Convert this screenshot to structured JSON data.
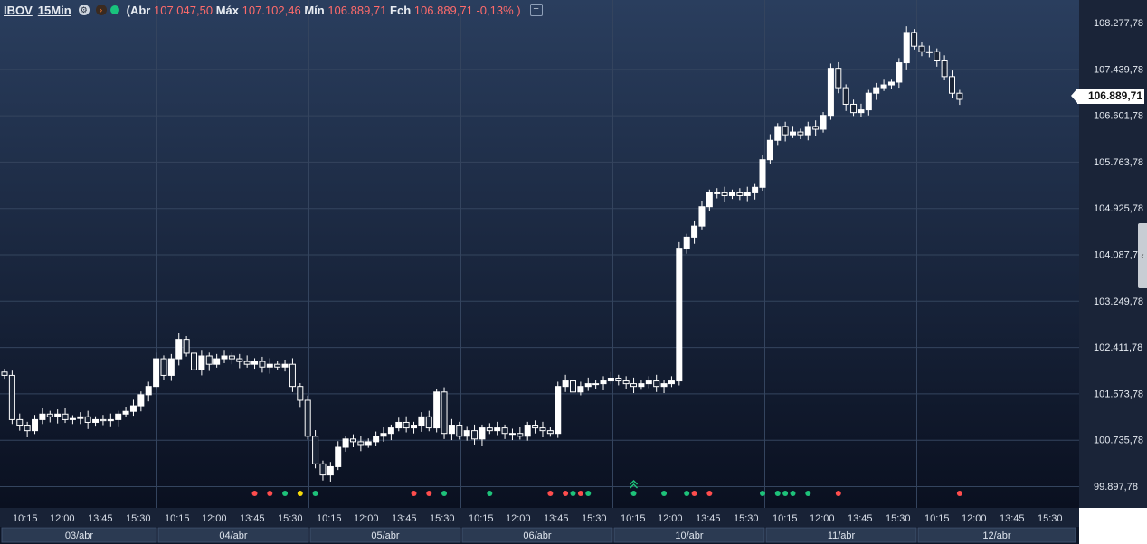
{
  "header": {
    "symbol": "IBOV",
    "timeframe": "15Min",
    "open_label": "(Abr",
    "open_value": "107.047,50",
    "high_label": "Máx",
    "high_value": "107.102,46",
    "low_label": "Mín",
    "low_value": "106.889,71",
    "close_label": "Fch",
    "close_value": "106.889,71 -0,13% )",
    "add_label": "+"
  },
  "last_price_label": "106.889,71",
  "colors": {
    "up_candle": "#ffffff",
    "down_candle": "#ffffff",
    "signal_red": "#ff4d4d",
    "signal_green": "#1ec27a",
    "signal_yellow": "#f5d90a",
    "header_value": "#ff6b6b"
  },
  "chart_data": {
    "type": "candlestick",
    "title": "",
    "y_axis_ticks": [
      "108.277,78",
      "107.439,78",
      "106.601,78",
      "105.763,78",
      "104.925,78",
      "104.087,78",
      "103.249,78",
      "102.411,78",
      "101.573,78",
      "100.735,78",
      "99.897,78"
    ],
    "ylim": [
      99700,
      108500
    ],
    "x_time_ticks": [
      "10:15",
      "12:00",
      "13:45",
      "15:30",
      "10:15",
      "12:00",
      "13:45",
      "15:30",
      "10:15",
      "12:00",
      "13:45",
      "15:30",
      "10:15",
      "12:00",
      "13:45",
      "15:30",
      "10:15",
      "12:00",
      "13:45",
      "15:30",
      "10:15",
      "12:00",
      "13:45",
      "15:30",
      "10:15",
      "12:00",
      "13:45",
      "15:30"
    ],
    "x_day_labels": [
      "03/abr",
      "04/abr",
      "05/abr",
      "06/abr",
      "10/abr",
      "11/abr",
      "12/abr"
    ],
    "closes": [
      101900,
      101100,
      101000,
      100900,
      101100,
      101200,
      101150,
      101200,
      101100,
      101120,
      101150,
      101050,
      101100,
      101080,
      101100,
      101200,
      101250,
      101350,
      101550,
      101700,
      102200,
      101900,
      102200,
      102550,
      102300,
      102000,
      102250,
      102100,
      102200,
      102250,
      102200,
      102150,
      102100,
      102150,
      102050,
      102100,
      102050,
      102100,
      101700,
      101450,
      100800,
      100300,
      100100,
      100250,
      100600,
      100750,
      100700,
      100650,
      100700,
      100800,
      100850,
      100950,
      101050,
      100950,
      101000,
      101150,
      100950,
      101600,
      100850,
      101000,
      100800,
      100900,
      100750,
      100950,
      100900,
      100950,
      100850,
      100850,
      100800,
      101000,
      100950,
      100900,
      100850,
      101700,
      101800,
      101600,
      101700,
      101750,
      101750,
      101800,
      101850,
      101800,
      101750,
      101700,
      101750,
      101800,
      101700,
      101750,
      101800,
      104200,
      104400,
      104600,
      104950,
      105200,
      105200,
      105150,
      105200,
      105150,
      105200,
      105300,
      105800,
      106150,
      106400,
      106250,
      106300,
      106250,
      106400,
      106350,
      106600,
      107450,
      107100,
      106800,
      106650,
      106700,
      107000,
      107100,
      107150,
      107200,
      107550,
      108100,
      107850,
      107750,
      107750,
      107600,
      107300,
      107000,
      106890
    ],
    "signal_dots": [
      {
        "bar": 33,
        "color": "red"
      },
      {
        "bar": 35,
        "color": "red"
      },
      {
        "bar": 37,
        "color": "green"
      },
      {
        "bar": 39,
        "color": "yellow"
      },
      {
        "bar": 41,
        "color": "green"
      },
      {
        "bar": 54,
        "color": "red"
      },
      {
        "bar": 56,
        "color": "red"
      },
      {
        "bar": 58,
        "color": "green"
      },
      {
        "bar": 64,
        "color": "green"
      },
      {
        "bar": 72,
        "color": "red"
      },
      {
        "bar": 74,
        "color": "red"
      },
      {
        "bar": 75,
        "color": "green"
      },
      {
        "bar": 76,
        "color": "red"
      },
      {
        "bar": 77,
        "color": "green"
      },
      {
        "bar": 83,
        "color": "green"
      },
      {
        "bar": 87,
        "color": "green"
      },
      {
        "bar": 90,
        "color": "green"
      },
      {
        "bar": 91,
        "color": "red"
      },
      {
        "bar": 93,
        "color": "red"
      },
      {
        "bar": 100,
        "color": "green"
      },
      {
        "bar": 102,
        "color": "green"
      },
      {
        "bar": 103,
        "color": "green"
      },
      {
        "bar": 104,
        "color": "green"
      },
      {
        "bar": 106,
        "color": "green"
      },
      {
        "bar": 110,
        "color": "red"
      },
      {
        "bar": 126,
        "color": "red"
      }
    ],
    "chevron_bar": 83,
    "grid": true
  }
}
